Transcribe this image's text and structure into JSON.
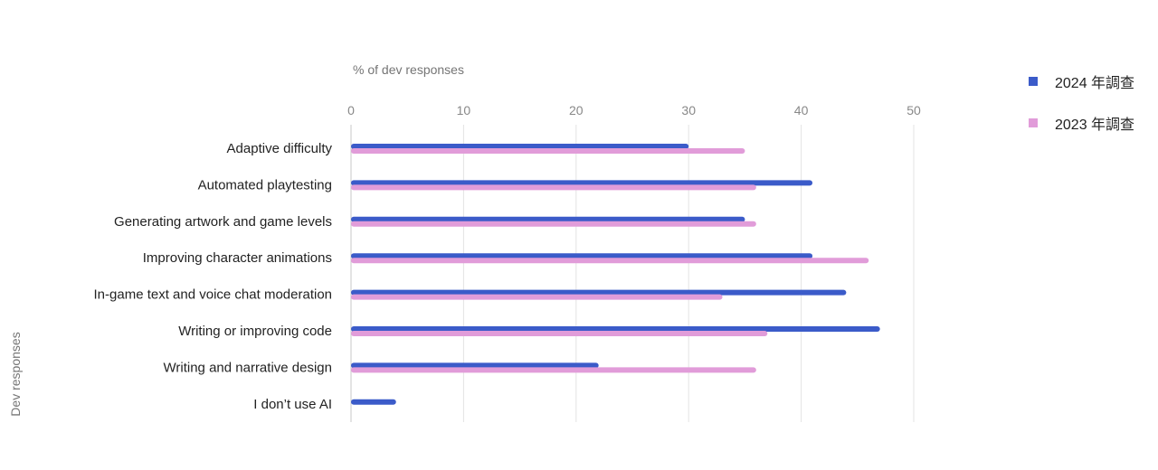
{
  "chart_data": {
    "type": "bar",
    "orientation": "horizontal",
    "xlabel": "% of dev responses",
    "ylabel": "Dev responses",
    "xlim": [
      0,
      50
    ],
    "xticks": [
      0,
      10,
      20,
      30,
      40,
      50
    ],
    "grid": true,
    "legend_position": "top-right",
    "categories": [
      "Adaptive difficulty",
      "Automated playtesting",
      "Generating artwork and game levels",
      "Improving character animations",
      "In-game text and voice chat moderation",
      "Writing or improving code",
      "Writing and narrative design",
      "I don’t use AI"
    ],
    "series": [
      {
        "name": "2024 年調查",
        "color": "#3b5bc9",
        "values": [
          30,
          41,
          35,
          41,
          44,
          47,
          22,
          4
        ]
      },
      {
        "name": "2023 年調查",
        "color": "#e19cd9",
        "values": [
          35,
          36,
          36,
          46,
          33,
          37,
          36,
          0
        ]
      }
    ]
  }
}
